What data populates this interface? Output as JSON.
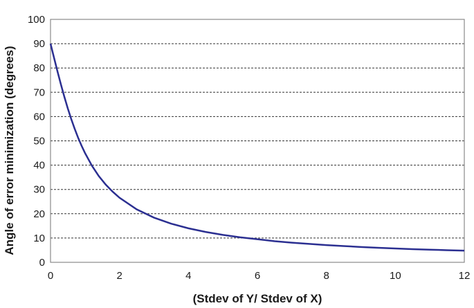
{
  "chart_data": {
    "type": "line",
    "title": "",
    "xlabel": "(Stdev of Y/ Stdev of X)",
    "ylabel": "Angle of error minimization (degrees)",
    "xlim": [
      0,
      12
    ],
    "ylim": [
      0,
      100
    ],
    "x_ticks": [
      0,
      2,
      4,
      6,
      8,
      10,
      12
    ],
    "y_ticks": [
      0,
      10,
      20,
      30,
      40,
      50,
      60,
      70,
      80,
      90,
      100
    ],
    "grid": "horizontal dashed",
    "legend": "none",
    "series": [
      {
        "color": "#2b2f91",
        "x": [
          0,
          0.1,
          0.2,
          0.3,
          0.4,
          0.5,
          0.6,
          0.7,
          0.8,
          0.9,
          1.0,
          1.2,
          1.4,
          1.6,
          1.8,
          2.0,
          2.5,
          3.0,
          3.5,
          4.0,
          4.5,
          5.0,
          5.5,
          6.0,
          6.5,
          7.0,
          7.5,
          8.0,
          8.5,
          9.0,
          9.5,
          10.0,
          10.5,
          11.0,
          11.5,
          12.0
        ],
        "y": [
          90.0,
          84.3,
          78.7,
          73.3,
          68.2,
          63.4,
          59.0,
          55.0,
          51.3,
          48.0,
          45.0,
          39.8,
          35.5,
          32.0,
          29.1,
          26.6,
          21.8,
          18.4,
          15.9,
          14.0,
          12.5,
          11.3,
          10.3,
          9.5,
          8.7,
          8.1,
          7.6,
          7.1,
          6.7,
          6.3,
          6.0,
          5.7,
          5.4,
          5.2,
          5.0,
          4.8
        ]
      }
    ]
  }
}
